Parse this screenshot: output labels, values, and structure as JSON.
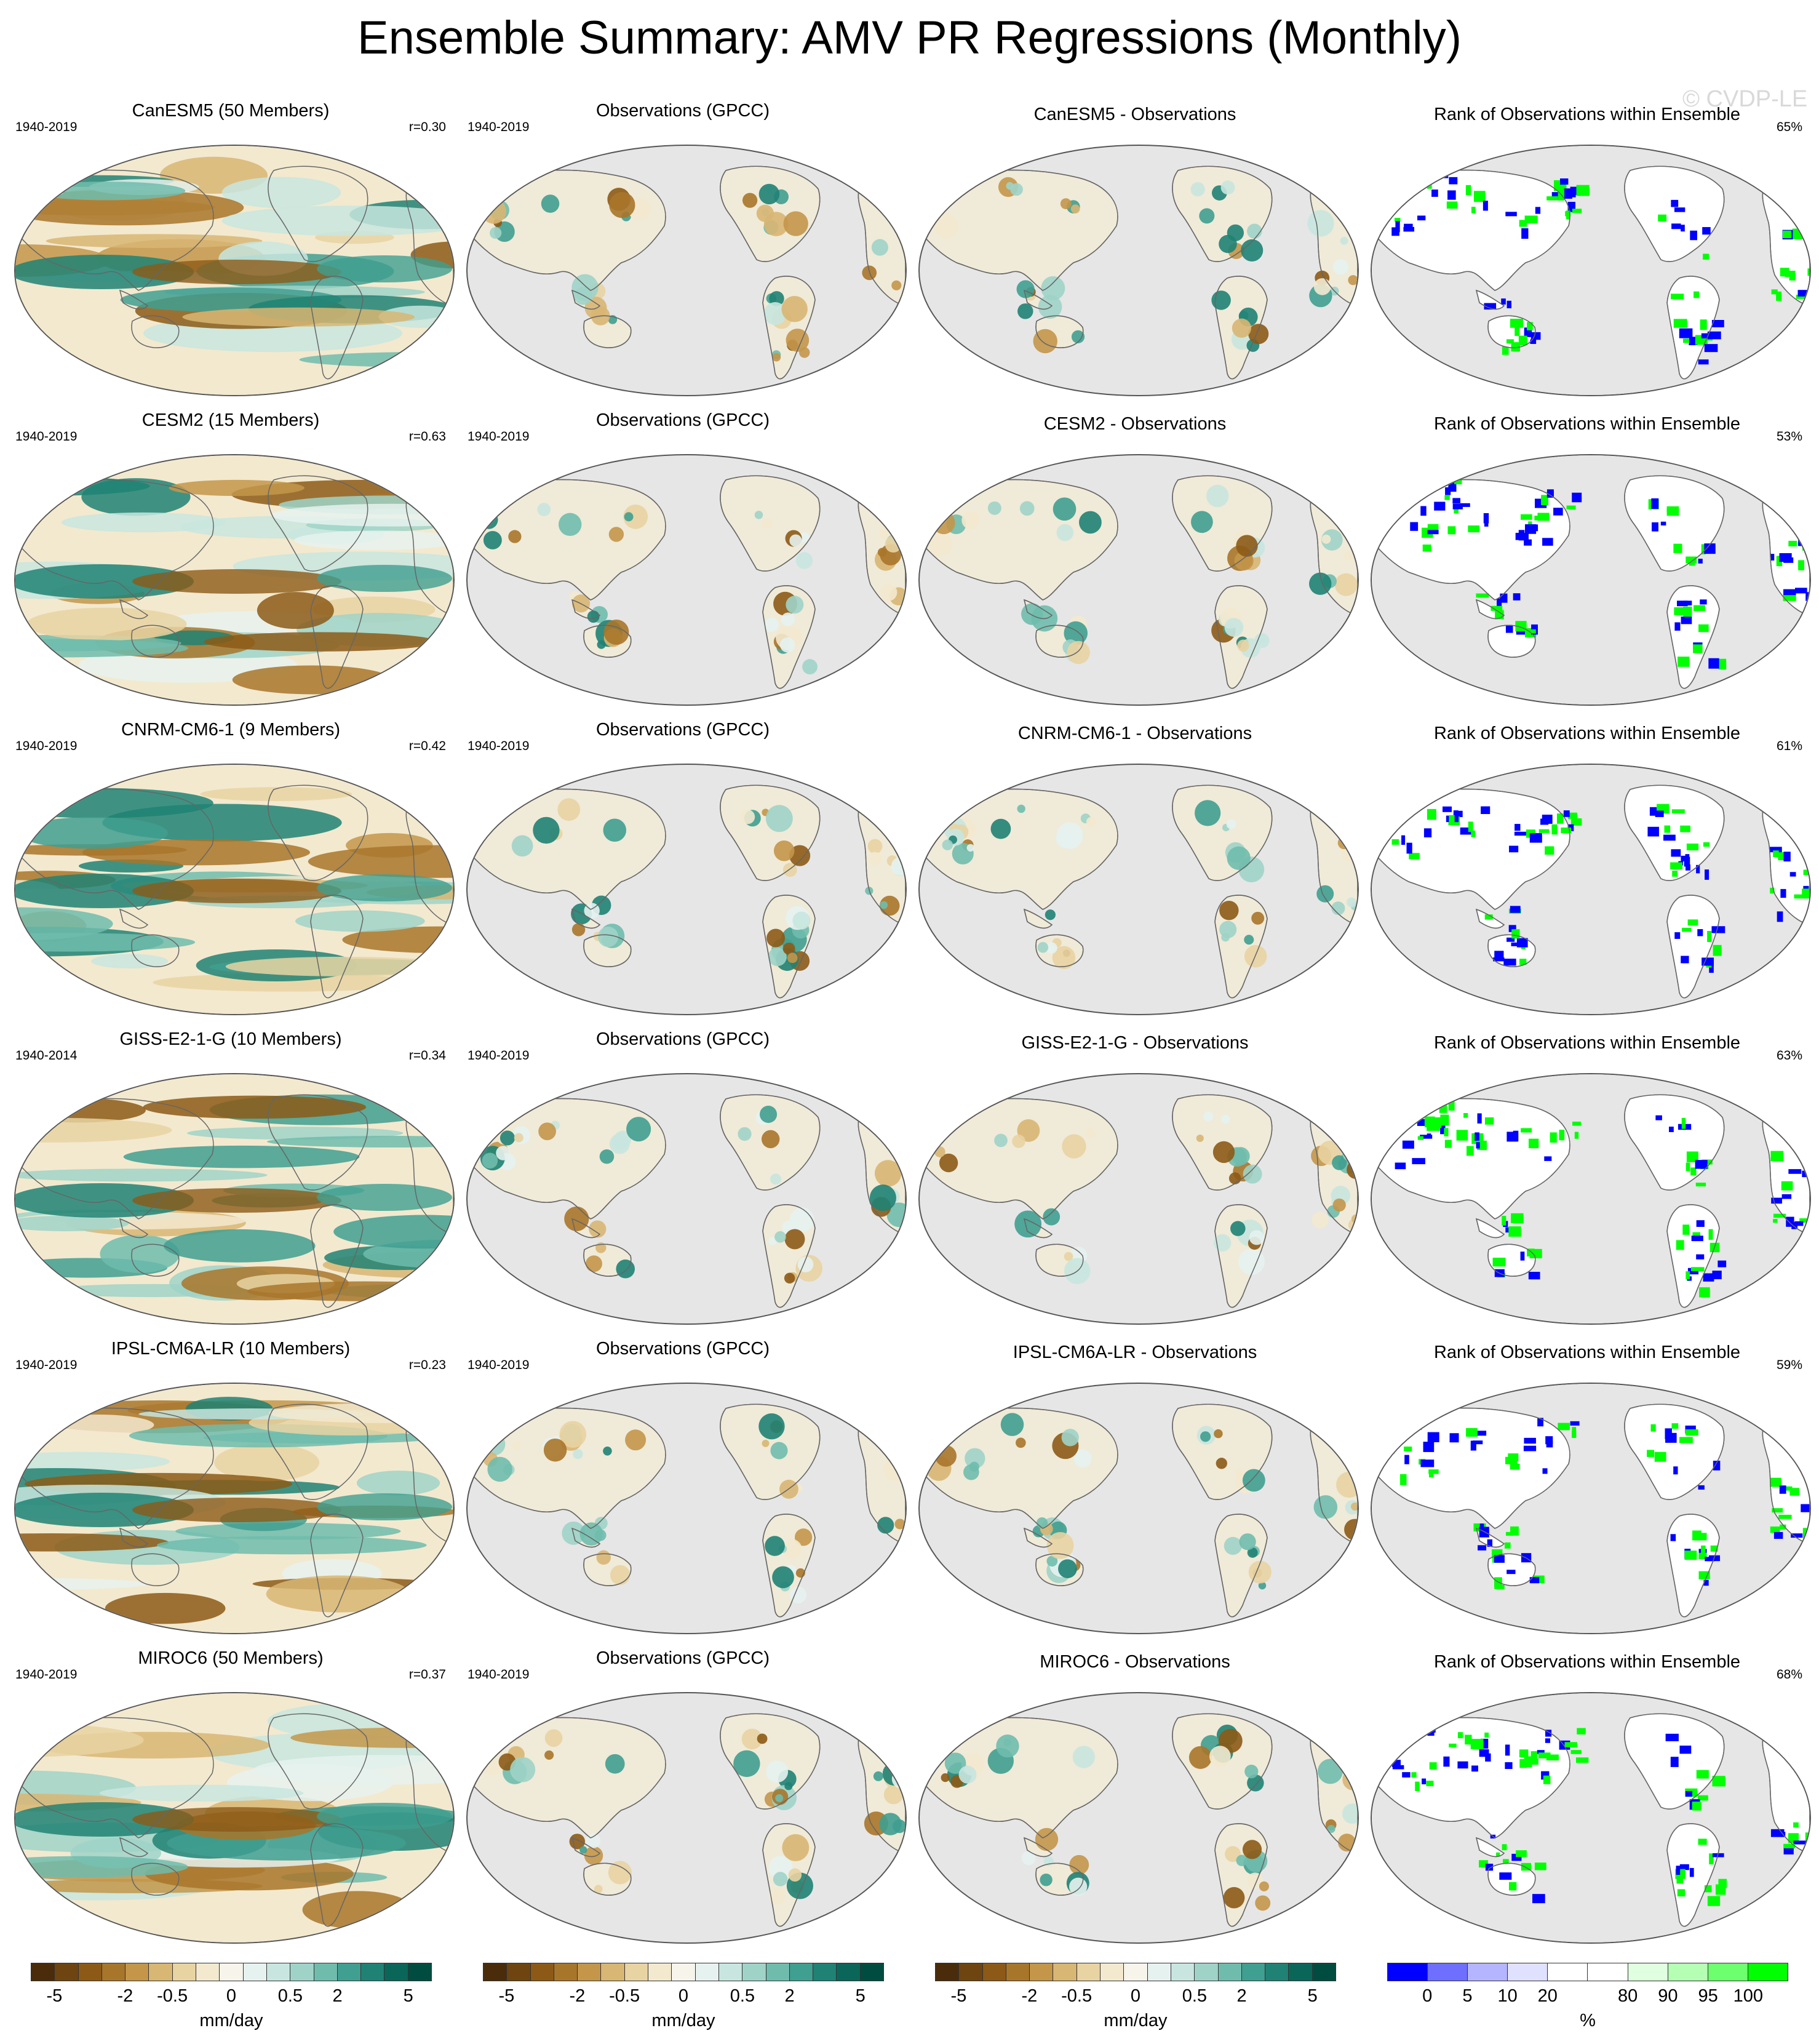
{
  "title": "Ensemble Summary: AMV PR Regressions (Monthly)",
  "watermark": "© CVDP-LE",
  "rows": [
    {
      "model_title": "CanESM5 (50 Members)",
      "model_years": "1940-2019",
      "model_r": "r=0.30",
      "obs_title": "Observations (GPCC)",
      "obs_years": "1940-2019",
      "diff_title": "CanESM5 - Observations",
      "rank_title": "Rank of Observations within Ensemble",
      "rank_pct": "65%"
    },
    {
      "model_title": "CESM2 (15 Members)",
      "model_years": "1940-2019",
      "model_r": "r=0.63",
      "obs_title": "Observations (GPCC)",
      "obs_years": "1940-2019",
      "diff_title": "CESM2 - Observations",
      "rank_title": "Rank of Observations within Ensemble",
      "rank_pct": "53%"
    },
    {
      "model_title": "CNRM-CM6-1 (9 Members)",
      "model_years": "1940-2019",
      "model_r": "r=0.42",
      "obs_title": "Observations (GPCC)",
      "obs_years": "1940-2019",
      "diff_title": "CNRM-CM6-1 - Observations",
      "rank_title": "Rank of Observations within Ensemble",
      "rank_pct": "61%"
    },
    {
      "model_title": "GISS-E2-1-G (10 Members)",
      "model_years": "1940-2014",
      "model_r": "r=0.34",
      "obs_title": "Observations (GPCC)",
      "obs_years": "1940-2019",
      "diff_title": "GISS-E2-1-G - Observations",
      "rank_title": "Rank of Observations within Ensemble",
      "rank_pct": "63%"
    },
    {
      "model_title": "IPSL-CM6A-LR (10 Members)",
      "model_years": "1940-2019",
      "model_r": "r=0.23",
      "obs_title": "Observations (GPCC)",
      "obs_years": "1940-2019",
      "diff_title": "IPSL-CM6A-LR - Observations",
      "rank_title": "Rank of Observations within Ensemble",
      "rank_pct": "59%"
    },
    {
      "model_title": "MIROC6 (50 Members)",
      "model_years": "1940-2019",
      "model_r": "r=0.37",
      "obs_title": "Observations (GPCC)",
      "obs_years": "1940-2019",
      "diff_title": "MIROC6 - Observations",
      "rank_title": "Rank of Observations within Ensemble",
      "rank_pct": "68%"
    }
  ],
  "colorbars": {
    "pr": {
      "colors": [
        "#4a2c0a",
        "#6e4410",
        "#8c5a16",
        "#a8762a",
        "#c3964a",
        "#d8b673",
        "#e8d3a2",
        "#f3e9cf",
        "#f7f4ec",
        "#e6f2ef",
        "#c8e6df",
        "#9fd3c8",
        "#6fbcad",
        "#3f9f90",
        "#1f8274",
        "#0a6659",
        "#004c40"
      ],
      "ticks": [
        "-5",
        "-2",
        "-0.5",
        "0",
        "0.5",
        "2",
        "5"
      ],
      "label": "mm/day"
    },
    "rank": {
      "colors": [
        "#0000ff",
        "#6e6eff",
        "#b4b4ff",
        "#e0e0ff",
        "#ffffff",
        "#ffffff",
        "#e0ffe0",
        "#b4ffb4",
        "#6eff6e",
        "#00ff00"
      ],
      "ticks": [
        "0",
        "5",
        "10",
        "20",
        "80",
        "90",
        "95",
        "100"
      ],
      "label": "%"
    }
  }
}
